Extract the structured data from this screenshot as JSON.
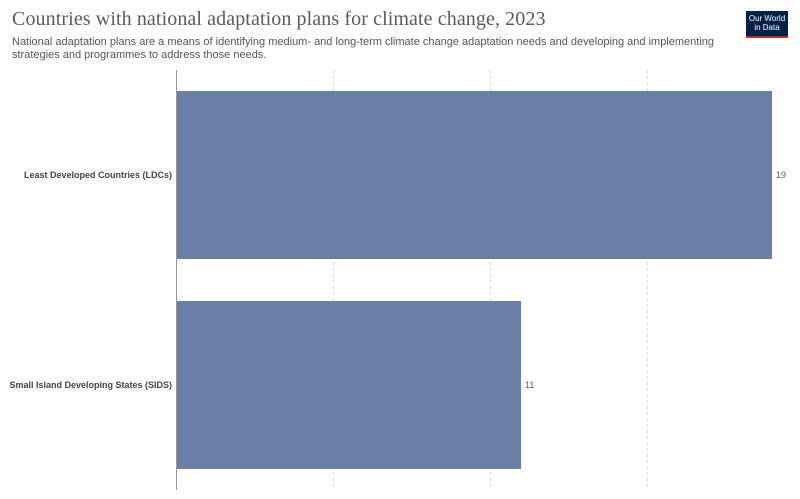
{
  "header": {
    "title": "Countries with national adaptation plans for climate change, 2023",
    "subtitle": "National adaptation plans are a means of identifying medium- and long-term climate change adaptation needs and developing and implementing strategies and programmes to address those needs."
  },
  "logo": {
    "line1": "Our World",
    "line2": "in Data"
  },
  "chart_data": {
    "type": "bar",
    "orientation": "horizontal",
    "categories": [
      "Least Developed Countries (LDCs)",
      "Small Island Developing States (SIDS)"
    ],
    "values": [
      19,
      11
    ],
    "value_labels": [
      "19",
      "11"
    ],
    "xlim": [
      0,
      19
    ],
    "grid": true,
    "bar_color": "#6a7fa8"
  }
}
